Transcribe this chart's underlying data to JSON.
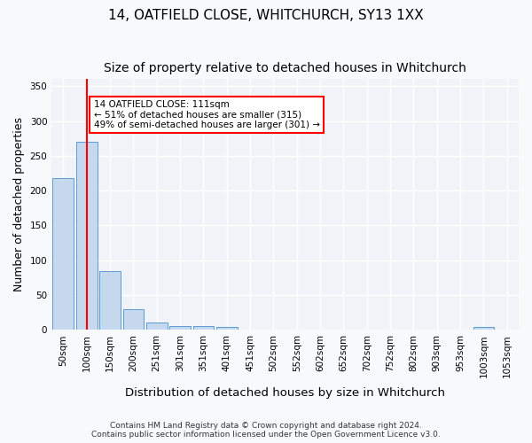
{
  "title": "14, OATFIELD CLOSE, WHITCHURCH, SY13 1XX",
  "subtitle": "Size of property relative to detached houses in Whitchurch",
  "xlabel": "Distribution of detached houses by size in Whitchurch",
  "ylabel": "Number of detached properties",
  "bar_color": "#c5d8ed",
  "bar_edge_color": "#5b9bd5",
  "categories": [
    "50sqm",
    "100sqm",
    "150sqm",
    "200sqm",
    "251sqm",
    "301sqm",
    "351sqm",
    "401sqm",
    "451sqm",
    "502sqm",
    "552sqm",
    "602sqm",
    "652sqm",
    "702sqm",
    "752sqm",
    "802sqm",
    "903sqm",
    "953sqm",
    "1003sqm",
    "1053sqm"
  ],
  "values": [
    218,
    270,
    84,
    30,
    11,
    5,
    5,
    4,
    0,
    0,
    0,
    0,
    0,
    0,
    0,
    0,
    0,
    0,
    4,
    0
  ],
  "ylim": [
    0,
    360
  ],
  "yticks": [
    0,
    50,
    100,
    150,
    200,
    250,
    300,
    350
  ],
  "red_line_x": 1,
  "annotation_text": "14 OATFIELD CLOSE: 111sqm\n← 51% of detached houses are smaller (315)\n49% of semi-detached houses are larger (301) →",
  "footer_line1": "Contains HM Land Registry data © Crown copyright and database right 2024.",
  "footer_line2": "Contains public sector information licensed under the Open Government Licence v3.0.",
  "background_color": "#f0f4f8",
  "grid_color": "#ffffff",
  "title_fontsize": 11,
  "subtitle_fontsize": 10,
  "axis_label_fontsize": 9,
  "tick_fontsize": 7.5
}
